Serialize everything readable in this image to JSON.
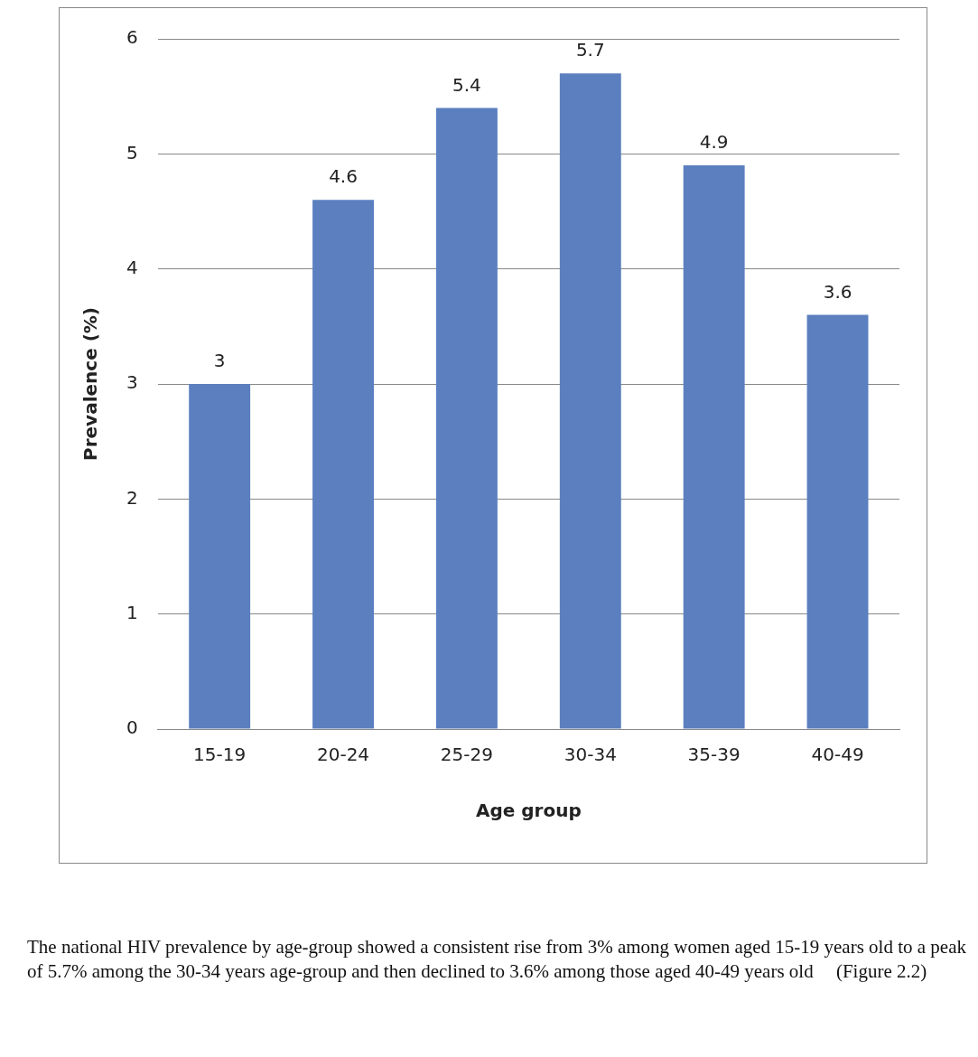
{
  "chart_data": {
    "type": "bar",
    "xlabel": "Age group",
    "ylabel": "Prevalence (%)",
    "categories": [
      "15-19",
      "20-24",
      "25-29",
      "30-34",
      "35-39",
      "40-49"
    ],
    "values": [
      3,
      4.6,
      5.4,
      5.7,
      4.9,
      3.6
    ],
    "color": "#5b7fbf",
    "ylim": [
      0,
      6
    ],
    "yticks": [
      0,
      1,
      2,
      3,
      4,
      5,
      6
    ],
    "grid": "y",
    "data_labels": true,
    "legend": false,
    "annotations": [
      "The national HIV prevalence by age-group showed a consistent rise from 3% among women aged 15-19 years old to a peak of 5.7% among the 30-34 years age-group and then declined to 3.6% among those aged 40-49 years old",
      "(Figure 2.2)"
    ]
  }
}
